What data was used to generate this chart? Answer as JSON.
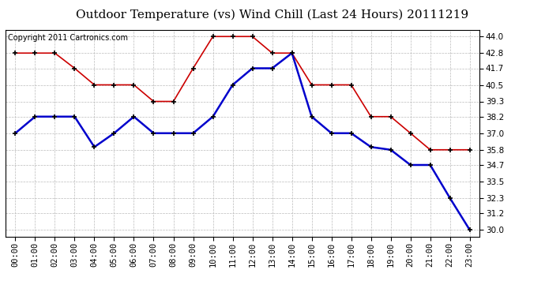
{
  "title": "Outdoor Temperature (vs) Wind Chill (Last 24 Hours) 20111219",
  "copyright": "Copyright 2011 Cartronics.com",
  "hours": [
    "00:00",
    "01:00",
    "02:00",
    "03:00",
    "04:00",
    "05:00",
    "06:00",
    "07:00",
    "08:00",
    "09:00",
    "10:00",
    "11:00",
    "12:00",
    "13:00",
    "14:00",
    "15:00",
    "16:00",
    "17:00",
    "18:00",
    "19:00",
    "20:00",
    "21:00",
    "22:00",
    "23:00"
  ],
  "temp": [
    42.8,
    42.8,
    42.8,
    41.7,
    40.5,
    40.5,
    40.5,
    39.3,
    39.3,
    41.7,
    44.0,
    44.0,
    44.0,
    42.8,
    42.8,
    40.5,
    40.5,
    40.5,
    38.2,
    38.2,
    37.0,
    35.8,
    35.8,
    35.8
  ],
  "wind_chill": [
    37.0,
    38.2,
    38.2,
    38.2,
    36.0,
    37.0,
    38.2,
    37.0,
    37.0,
    37.0,
    38.2,
    40.5,
    41.7,
    41.7,
    42.8,
    38.2,
    37.0,
    37.0,
    36.0,
    35.8,
    34.7,
    34.7,
    32.3,
    30.0
  ],
  "temp_color": "#cc0000",
  "wind_chill_color": "#0000cc",
  "bg_color": "#ffffff",
  "grid_color": "#aaaaaa",
  "ylim": [
    29.5,
    44.5
  ],
  "yticks": [
    30.0,
    31.2,
    32.3,
    33.5,
    34.7,
    35.8,
    37.0,
    38.2,
    39.3,
    40.5,
    41.7,
    42.8,
    44.0
  ],
  "title_fontsize": 11,
  "copyright_fontsize": 7
}
